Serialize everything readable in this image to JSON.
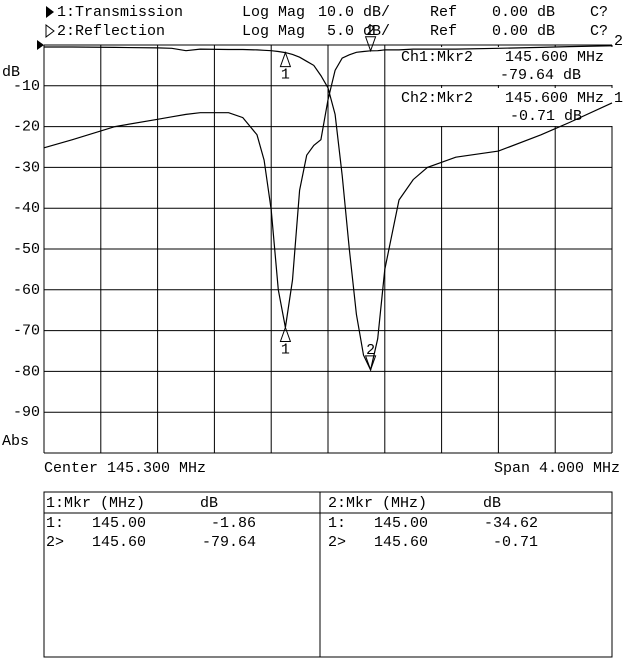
{
  "header": {
    "channels": [
      {
        "label": "1:Transmission",
        "format": "Log Mag",
        "scale": "10.0 dB/",
        "ref_label": "Ref",
        "ref": "0.00 dB",
        "cal": "C?"
      },
      {
        "label": "2:Reflection",
        "format": "Log Mag",
        "scale": "5.0 dB/",
        "ref_label": "Ref",
        "ref": "0.00 dB",
        "cal": "C?"
      }
    ]
  },
  "chart_data": {
    "type": "line",
    "y_label": "dB",
    "y_label_bottom": "Abs",
    "x": [
      143.3,
      143.5,
      143.8,
      144.1,
      144.2,
      144.3,
      144.4,
      144.6,
      144.7,
      144.8,
      144.85,
      144.9,
      144.95,
      145.0,
      145.05,
      145.1,
      145.15,
      145.2,
      145.25,
      145.3,
      145.35,
      145.4,
      145.45,
      145.5,
      145.55,
      145.6,
      145.65,
      145.7,
      145.8,
      145.9,
      146.0,
      146.2,
      146.5,
      146.8,
      147.0,
      147.3
    ],
    "xlim": [
      143.3,
      147.3
    ],
    "ylim": [
      -100,
      0
    ],
    "yticks": [
      -10,
      -20,
      -30,
      -40,
      -50,
      -60,
      -70,
      -80,
      -90
    ],
    "y2lim": [
      -50,
      0
    ],
    "grid": true,
    "series": [
      {
        "name": "1",
        "color": "#000000",
        "values": [
          -0.5,
          -0.5,
          -0.6,
          -0.7,
          -0.8,
          -1.4,
          -1.0,
          -1.1,
          -1.1,
          -1.2,
          -1.3,
          -1.4,
          -1.6,
          -1.86,
          -2.3,
          -3,
          -4,
          -5,
          -7.5,
          -10.5,
          -17,
          -32,
          -50,
          -66,
          -76,
          -79.64,
          -72,
          -55,
          -38,
          -33,
          -30,
          -27.5,
          -26,
          -22,
          -19,
          -14.2
        ]
      },
      {
        "name": "2",
        "color": "#000000",
        "axis": "y2",
        "values": [
          -12.6,
          -11.6,
          -10,
          -9.1,
          -8.8,
          -8.5,
          -8.3,
          -8.3,
          -8.9,
          -11,
          -14.1,
          -20.2,
          -30,
          -34.62,
          -28.8,
          -17.8,
          -13.5,
          -12.3,
          -11.6,
          -6.7,
          -3.1,
          -1.6,
          -1.2,
          -0.9,
          -0.8,
          -0.71,
          -0.7,
          -0.6,
          -0.6,
          -0.5,
          -0.5,
          -0.5,
          -0.4,
          -0.3,
          -0.2,
          -0.1
        ]
      }
    ],
    "markers": [
      {
        "label": "1",
        "x": 145.0
      },
      {
        "label": "2",
        "x": 145.6
      }
    ],
    "readouts": [
      {
        "name": "Ch1:Mkr2",
        "freq": "145.600 MHz",
        "value": "-79.64 dB"
      },
      {
        "name": "Ch2:Mkr2",
        "freq": "145.600 MHz",
        "value": "-0.71 dB"
      }
    ],
    "center": "Center 145.300 MHz",
    "span": "Span 4.000 MHz"
  },
  "marker_table": {
    "panels": [
      {
        "header": "1:Mkr (MHz)",
        "unit": "dB",
        "rows": [
          [
            "1:",
            "145.00",
            "-1.86"
          ],
          [
            "2>",
            "145.60",
            "-79.64"
          ]
        ]
      },
      {
        "header": "2:Mkr (MHz)",
        "unit": "dB",
        "rows": [
          [
            "1:",
            "145.00",
            "-34.62"
          ],
          [
            "2>",
            "145.60",
            "-0.71"
          ]
        ]
      }
    ]
  }
}
